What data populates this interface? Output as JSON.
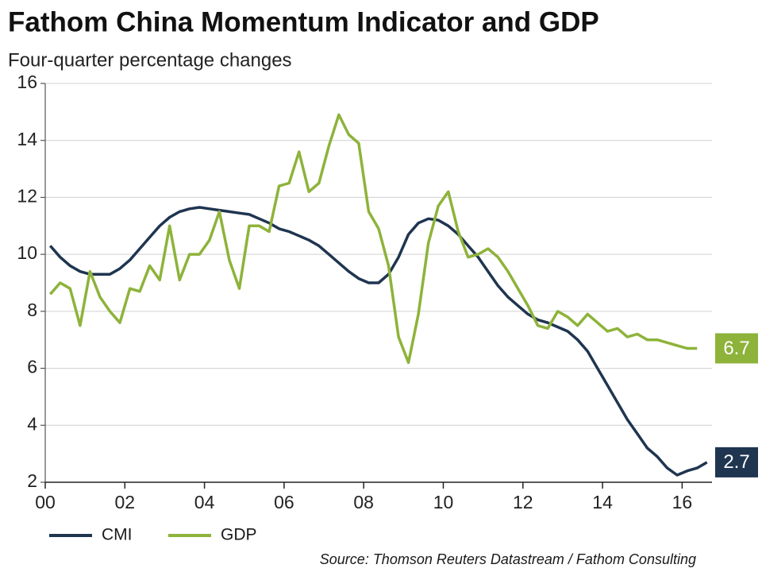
{
  "chart_data": {
    "type": "line",
    "title": "Fathom China Momentum Indicator and GDP",
    "subtitle": "Four-quarter percentage changes",
    "source": "Source: Thomson Reuters Datastream / Fathom Consulting",
    "x": [
      2000.125,
      2000.375,
      2000.625,
      2000.875,
      2001.125,
      2001.375,
      2001.625,
      2001.875,
      2002.125,
      2002.375,
      2002.625,
      2002.875,
      2003.125,
      2003.375,
      2003.625,
      2003.875,
      2004.125,
      2004.375,
      2004.625,
      2004.875,
      2005.125,
      2005.375,
      2005.625,
      2005.875,
      2006.125,
      2006.375,
      2006.625,
      2006.875,
      2007.125,
      2007.375,
      2007.625,
      2007.875,
      2008.125,
      2008.375,
      2008.625,
      2008.875,
      2009.125,
      2009.375,
      2009.625,
      2009.875,
      2010.125,
      2010.375,
      2010.625,
      2010.875,
      2011.125,
      2011.375,
      2011.625,
      2011.875,
      2012.125,
      2012.375,
      2012.625,
      2012.875,
      2013.125,
      2013.375,
      2013.625,
      2013.875,
      2014.125,
      2014.375,
      2014.625,
      2014.875,
      2015.125,
      2015.375,
      2015.625,
      2015.875,
      2016.125,
      2016.375,
      2016.625
    ],
    "series": [
      {
        "name": "CMI",
        "color": "#1f3550",
        "values": [
          10.3,
          9.9,
          9.6,
          9.4,
          9.3,
          9.3,
          9.3,
          9.5,
          9.8,
          10.2,
          10.6,
          11.0,
          11.3,
          11.5,
          11.6,
          11.65,
          11.6,
          11.55,
          11.5,
          11.45,
          11.4,
          11.25,
          11.1,
          10.9,
          10.8,
          10.65,
          10.5,
          10.3,
          10.0,
          9.7,
          9.4,
          9.15,
          9.0,
          9.0,
          9.3,
          9.9,
          10.7,
          11.1,
          11.25,
          11.2,
          11.0,
          10.7,
          10.3,
          9.9,
          9.4,
          8.9,
          8.5,
          8.2,
          7.9,
          7.7,
          7.6,
          7.45,
          7.3,
          7.0,
          6.6,
          6.0,
          5.4,
          4.8,
          4.2,
          3.7,
          3.2,
          2.9,
          2.5,
          2.25,
          2.4,
          2.5,
          2.7
        ]
      },
      {
        "name": "GDP",
        "color": "#8db33a",
        "values": [
          8.6,
          9.0,
          8.8,
          7.5,
          9.4,
          8.5,
          8.0,
          7.6,
          8.8,
          8.7,
          9.6,
          9.1,
          11.0,
          9.1,
          10.0,
          10.0,
          10.5,
          11.5,
          9.8,
          8.8,
          11.0,
          11.0,
          10.8,
          12.4,
          12.5,
          13.6,
          12.2,
          12.5,
          13.8,
          14.9,
          14.2,
          13.9,
          11.5,
          10.9,
          9.6,
          7.1,
          6.2,
          7.9,
          10.4,
          11.7,
          12.2,
          10.8,
          9.9,
          10.0,
          10.2,
          9.9,
          9.4,
          8.8,
          8.2,
          7.5,
          7.4,
          8.0,
          7.8,
          7.5,
          7.9,
          7.6,
          7.3,
          7.4,
          7.1,
          7.2,
          7.0,
          7.0,
          6.9,
          6.8,
          6.7,
          6.7,
          null
        ]
      }
    ],
    "xlim": [
      2000,
      2016.75
    ],
    "xticks": [
      {
        "value": 2000,
        "label": "00"
      },
      {
        "value": 2002,
        "label": "02"
      },
      {
        "value": 2004,
        "label": "04"
      },
      {
        "value": 2006,
        "label": "06"
      },
      {
        "value": 2008,
        "label": "08"
      },
      {
        "value": 2010,
        "label": "10"
      },
      {
        "value": 2012,
        "label": "12"
      },
      {
        "value": 2014,
        "label": "14"
      },
      {
        "value": 2016,
        "label": "16"
      }
    ],
    "ylim": [
      2,
      16
    ],
    "yticks": [
      2,
      4,
      6,
      8,
      10,
      12,
      14,
      16
    ],
    "grid": true,
    "legend": "bottom-left"
  }
}
